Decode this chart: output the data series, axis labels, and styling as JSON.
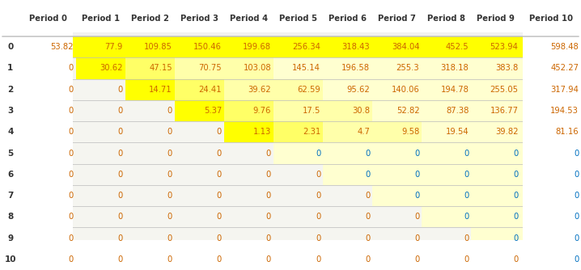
{
  "col_labels": [
    "Period 0",
    "Period 1",
    "Period 2",
    "Period 3",
    "Period 4",
    "Period 5",
    "Period 6",
    "Period 7",
    "Period 8",
    "Period 9",
    "Period 10"
  ],
  "row_labels": [
    "0",
    "1",
    "2",
    "3",
    "4",
    "5",
    "6",
    "7",
    "8",
    "9",
    "10"
  ],
  "table_data": [
    [
      53.82,
      77.9,
      109.85,
      150.46,
      199.68,
      256.34,
      318.43,
      384.04,
      452.5,
      523.94,
      598.48
    ],
    [
      0,
      30.62,
      47.15,
      70.75,
      103.08,
      145.14,
      196.58,
      255.3,
      318.18,
      383.8,
      452.27
    ],
    [
      0,
      0,
      14.71,
      24.41,
      39.62,
      62.59,
      95.62,
      140.06,
      194.78,
      255.05,
      317.94
    ],
    [
      0,
      0,
      0,
      5.37,
      9.76,
      17.5,
      30.8,
      52.82,
      87.38,
      136.77,
      194.53
    ],
    [
      0,
      0,
      0,
      0,
      1.13,
      2.31,
      4.7,
      9.58,
      19.54,
      39.82,
      81.16
    ],
    [
      0,
      0,
      0,
      0,
      0,
      0,
      0,
      0,
      0,
      0,
      0
    ],
    [
      0,
      0,
      0,
      0,
      0,
      0,
      0,
      0,
      0,
      0,
      0
    ],
    [
      0,
      0,
      0,
      0,
      0,
      0,
      0,
      0,
      0,
      0,
      0
    ],
    [
      0,
      0,
      0,
      0,
      0,
      0,
      0,
      0,
      0,
      0,
      0
    ],
    [
      0,
      0,
      0,
      0,
      0,
      0,
      0,
      0,
      0,
      0,
      0
    ],
    [
      0,
      0,
      0,
      0,
      0,
      0,
      0,
      0,
      0,
      0,
      0
    ]
  ],
  "yellow_bright": "#ffff00",
  "yellow_medium": "#ffff66",
  "yellow_light": "#ffffaa",
  "yellow_pale": "#ffffd0",
  "bg_very_pale": "#fafff0",
  "text_orange": "#cc6600",
  "text_blue": "#0070c0",
  "text_header": "#333333",
  "header_bg": "#f2f2f2",
  "row_label_bg_even": "#eeeeee",
  "row_label_bg_odd": "#e4e4e4",
  "border_color": "#bbbbbb",
  "fig_bg": "#ffffff"
}
